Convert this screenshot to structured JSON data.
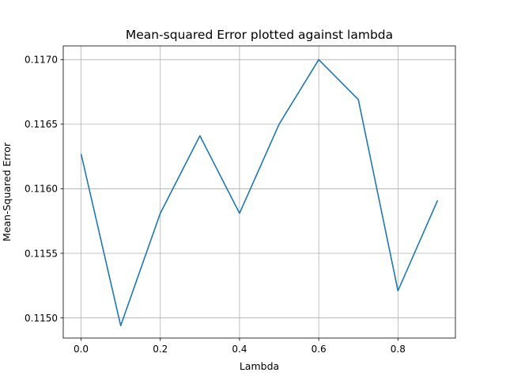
{
  "chart_data": {
    "type": "line",
    "title": "Mean-squared Error plotted against lambda",
    "xlabel": "Lambda",
    "ylabel": "Mean-Squared Error",
    "xlim": [
      -0.045,
      0.945
    ],
    "ylim": [
      0.114844,
      0.117106
    ],
    "xticks": [
      0.0,
      0.2,
      0.4,
      0.6,
      0.8
    ],
    "xtick_labels": [
      "0.0",
      "0.2",
      "0.4",
      "0.6",
      "0.8"
    ],
    "yticks": [
      0.115,
      0.1155,
      0.116,
      0.1165,
      0.117
    ],
    "ytick_labels": [
      "0.1150",
      "0.1155",
      "0.1160",
      "0.1165",
      "0.1170"
    ],
    "grid": true,
    "series": [
      {
        "color": "#1f77b4",
        "x": [
          0.0,
          0.1,
          0.2,
          0.3,
          0.4,
          0.5,
          0.6,
          0.7,
          0.8,
          0.9
        ],
        "y": [
          0.11627,
          0.11494,
          0.11581,
          0.11641,
          0.11581,
          0.1165,
          0.117,
          0.11669,
          0.11521,
          0.11591
        ]
      }
    ]
  }
}
